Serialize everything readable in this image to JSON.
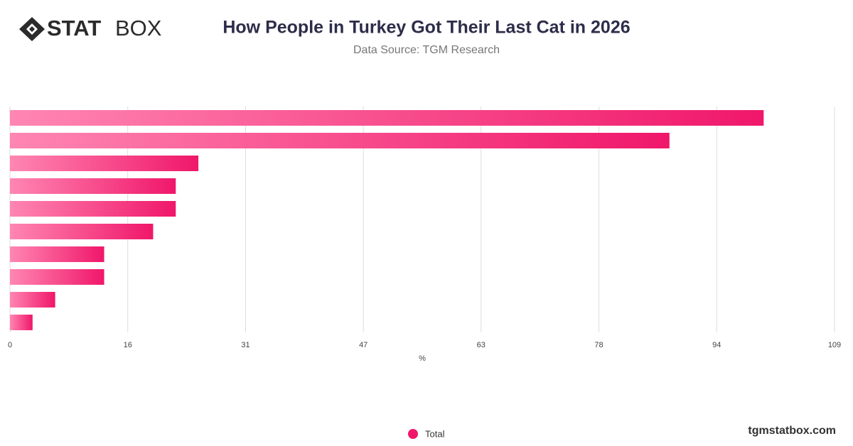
{
  "logo": [
    "STAT",
    "BOX"
  ],
  "footer": "tgmstatbox.com",
  "chart_data": {
    "type": "bar",
    "orientation": "horizontal",
    "title": "How People in Turkey Got Their Last Cat in 2026",
    "subtitle": "Data Source: TGM Research",
    "x_label": "%",
    "categories": [
      null,
      null,
      null,
      null,
      null,
      null,
      null,
      null,
      null,
      null
    ],
    "series": [
      {
        "name": "Total",
        "color": "#f0176a",
        "values": [
          100,
          87.5,
          25,
          22,
          22,
          19,
          12.5,
          12.5,
          6,
          3
        ]
      }
    ],
    "xlim": [
      0,
      109.4
    ],
    "xticks": [
      0,
      {
        "value": 15.63,
        "label": "16"
      },
      {
        "value": 31.26,
        "label": "31"
      },
      {
        "value": 46.89,
        "label": "47"
      },
      {
        "value": 62.51,
        "label": "63"
      },
      {
        "value": 78.14,
        "label": "78"
      },
      {
        "value": 93.77,
        "label": "94"
      },
      {
        "value": 109.4,
        "label": "109"
      }
    ],
    "grid": true,
    "legend": "bottom"
  }
}
